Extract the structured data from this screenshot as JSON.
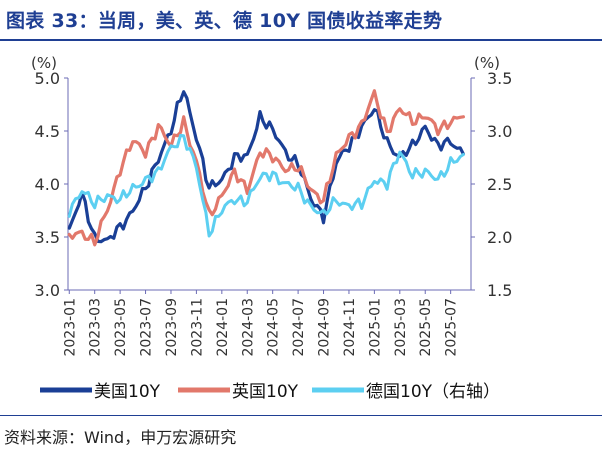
{
  "title": "图表 33：当周，美、英、德 10Y 国债收益率走势",
  "source": "资料来源：Wind，申万宏源研究",
  "colors": {
    "title": "#1f3f93",
    "us": "#1a3f96",
    "uk": "#e2786b",
    "de": "#5ccff1",
    "axis": "#6b6bb5"
  },
  "chart_data": {
    "type": "line",
    "left_axis": {
      "unit_label": "(%)",
      "ylim": [
        3.0,
        5.0
      ],
      "ticks": [
        "3.0",
        "3.5",
        "4.0",
        "4.5",
        "5.0"
      ]
    },
    "right_axis": {
      "unit_label": "(%)",
      "ylim": [
        1.5,
        3.5
      ],
      "ticks": [
        "1.5",
        "2.0",
        "2.5",
        "3.0",
        "3.5"
      ]
    },
    "x_ticks": [
      "2023-01",
      "2023-03",
      "2023-05",
      "2023-07",
      "2023-09",
      "2023-11",
      "2024-01",
      "2024-03",
      "2024-05",
      "2024-07",
      "2024-09",
      "2024-11",
      "2025-01",
      "2025-03",
      "2025-05",
      "2025-07"
    ],
    "x_range": [
      "2023-01",
      "2025-08"
    ],
    "grid": false,
    "legend_position": "bottom",
    "series": [
      {
        "name": "美国10Y",
        "axis": "left",
        "color": "#1a3f96",
        "x": [
          "2023-01",
          "2023-02",
          "2023-03",
          "2023-04",
          "2023-05",
          "2023-06",
          "2023-07",
          "2023-08",
          "2023-09",
          "2023-10",
          "2023-11",
          "2023-12",
          "2024-01",
          "2024-02",
          "2024-03",
          "2024-04",
          "2024-05",
          "2024-06",
          "2024-07",
          "2024-08",
          "2024-09",
          "2024-10",
          "2024-11",
          "2024-12",
          "2025-01",
          "2025-02",
          "2025-03",
          "2025-04",
          "2025-05",
          "2025-06",
          "2025-07",
          "2025-08"
        ],
        "values": [
          3.55,
          3.9,
          3.5,
          3.45,
          3.6,
          3.75,
          3.95,
          4.25,
          4.5,
          4.9,
          4.45,
          3.95,
          4.05,
          4.25,
          4.25,
          4.65,
          4.5,
          4.3,
          4.2,
          3.85,
          3.7,
          4.2,
          4.35,
          4.55,
          4.7,
          4.4,
          4.25,
          4.35,
          4.55,
          4.35,
          4.4,
          4.3
        ]
      },
      {
        "name": "英国10Y",
        "axis": "left",
        "color": "#e2786b",
        "x": [
          "2023-01",
          "2023-02",
          "2023-03",
          "2023-04",
          "2023-05",
          "2023-06",
          "2023-07",
          "2023-08",
          "2023-09",
          "2023-10",
          "2023-11",
          "2023-12",
          "2024-01",
          "2024-02",
          "2024-03",
          "2024-04",
          "2024-05",
          "2024-06",
          "2024-07",
          "2024-08",
          "2024-09",
          "2024-10",
          "2024-11",
          "2024-12",
          "2025-01",
          "2025-02",
          "2025-03",
          "2025-04",
          "2025-05",
          "2025-06",
          "2025-07",
          "2025-08"
        ],
        "values": [
          3.5,
          3.55,
          3.45,
          3.75,
          4.15,
          4.4,
          4.3,
          4.55,
          4.35,
          4.6,
          4.2,
          3.7,
          3.9,
          4.1,
          3.95,
          4.3,
          4.25,
          4.15,
          4.15,
          3.95,
          3.85,
          4.25,
          4.45,
          4.55,
          4.85,
          4.5,
          4.7,
          4.6,
          4.65,
          4.5,
          4.6,
          4.65
        ]
      },
      {
        "name": "德国10Y（右轴）",
        "axis": "right",
        "color": "#5ccff1",
        "x": [
          "2023-01",
          "2023-02",
          "2023-03",
          "2023-04",
          "2023-05",
          "2023-06",
          "2023-07",
          "2023-08",
          "2023-09",
          "2023-10",
          "2023-11",
          "2023-12",
          "2024-01",
          "2024-02",
          "2024-03",
          "2024-04",
          "2024-05",
          "2024-06",
          "2024-07",
          "2024-08",
          "2024-09",
          "2024-10",
          "2024-11",
          "2024-12",
          "2025-01",
          "2025-02",
          "2025-03",
          "2025-04",
          "2025-05",
          "2025-06",
          "2025-07",
          "2025-08"
        ],
        "values": [
          2.25,
          2.45,
          2.3,
          2.4,
          2.35,
          2.45,
          2.55,
          2.6,
          2.85,
          2.95,
          2.65,
          2.05,
          2.25,
          2.35,
          2.35,
          2.55,
          2.6,
          2.5,
          2.45,
          2.3,
          2.2,
          2.35,
          2.3,
          2.3,
          2.55,
          2.5,
          2.8,
          2.6,
          2.6,
          2.55,
          2.7,
          2.75
        ]
      }
    ]
  }
}
